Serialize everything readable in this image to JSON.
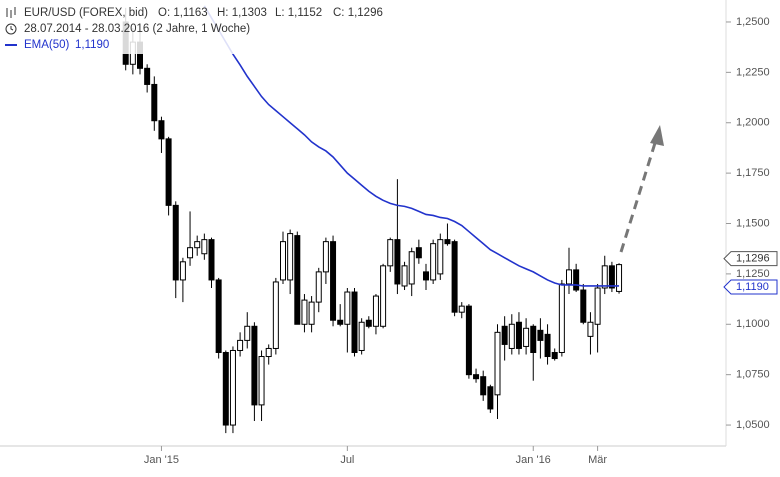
{
  "chart_data": {
    "type": "candlestick",
    "header": {
      "open": "O: 1,1163",
      "high": "H: 1,1303",
      "low": "L: 1,1152",
      "close": "C: 1,1296",
      "period": "28.07.2014 - 28.03.2016 (2 Jahre, 1 Woche)"
    },
    "categories": [
      null,
      null,
      null,
      null,
      null,
      "Jan '15",
      null,
      null,
      null,
      null,
      null,
      null,
      null,
      null,
      null,
      null,
      null,
      null,
      null,
      null,
      null,
      null,
      null,
      null,
      null,
      null,
      null,
      null,
      null,
      null,
      null,
      "Jul",
      null,
      null,
      null,
      null,
      null,
      null,
      null,
      null,
      null,
      null,
      null,
      null,
      null,
      null,
      null,
      null,
      null,
      null,
      null,
      null,
      null,
      null,
      null,
      null,
      null,
      "Jan '16",
      null,
      null,
      null,
      null,
      null,
      null,
      null,
      null,
      "Mär",
      null,
      null,
      null
    ],
    "series": [
      {
        "name": "EUR/USD (FOREX, bid)",
        "last_label": "1,1296",
        "open": [
          1.25,
          1.229,
          1.24,
          1.227,
          1.219,
          1.201,
          1.192,
          1.159,
          1.122,
          1.133,
          1.138,
          1.135,
          1.142,
          1.122,
          1.086,
          1.05,
          1.087,
          1.092,
          1.099,
          1.06,
          1.084,
          1.088,
          1.122,
          1.122,
          1.144,
          1.1,
          1.1,
          1.111,
          1.126,
          1.141,
          1.102,
          1.1,
          1.116,
          1.087,
          1.102,
          1.099,
          1.099,
          1.129,
          1.142,
          1.119,
          1.12,
          1.138,
          1.126,
          1.122,
          1.125,
          1.142,
          1.141,
          1.106,
          1.109,
          1.075,
          1.074,
          1.069,
          1.065,
          1.099,
          1.088,
          1.101,
          1.089,
          1.099,
          1.097,
          1.095,
          1.086,
          1.086,
          1.12,
          1.127,
          1.117,
          1.094,
          1.1,
          1.118,
          1.129,
          1.1163
        ],
        "high": [
          1.257,
          1.247,
          1.245,
          1.229,
          1.223,
          1.203,
          1.193,
          1.161,
          1.133,
          1.156,
          1.144,
          1.145,
          1.143,
          1.123,
          1.087,
          1.089,
          1.096,
          1.106,
          1.101,
          1.087,
          1.09,
          1.123,
          1.146,
          1.147,
          1.146,
          1.115,
          1.114,
          1.128,
          1.143,
          1.144,
          1.11,
          1.118,
          1.118,
          1.103,
          1.104,
          1.115,
          1.13,
          1.143,
          1.172,
          1.131,
          1.138,
          1.142,
          1.13,
          1.142,
          1.145,
          1.15,
          1.142,
          1.111,
          1.11,
          1.078,
          1.077,
          1.07,
          1.1,
          1.104,
          1.105,
          1.106,
          1.103,
          1.1,
          1.103,
          1.1,
          1.088,
          1.122,
          1.138,
          1.13,
          1.12,
          1.106,
          1.12,
          1.134,
          1.131,
          1.1303
        ],
        "low": [
          1.226,
          1.224,
          1.224,
          1.215,
          1.196,
          1.185,
          1.154,
          1.113,
          1.111,
          1.129,
          1.134,
          1.132,
          1.118,
          1.083,
          1.046,
          1.046,
          1.084,
          1.088,
          1.052,
          1.052,
          1.08,
          1.085,
          1.12,
          1.115,
          1.1,
          1.096,
          1.096,
          1.106,
          1.12,
          1.099,
          1.099,
          1.086,
          1.084,
          1.085,
          1.098,
          1.095,
          1.098,
          1.126,
          1.115,
          1.117,
          1.114,
          1.13,
          1.117,
          1.12,
          1.122,
          1.139,
          1.104,
          1.103,
          1.073,
          1.071,
          1.062,
          1.056,
          1.053,
          1.082,
          1.085,
          1.085,
          1.085,
          1.072,
          1.083,
          1.08,
          1.082,
          1.084,
          1.115,
          1.116,
          1.1,
          1.085,
          1.086,
          1.115,
          1.116,
          1.1152
        ],
        "close": [
          1.229,
          1.24,
          1.227,
          1.219,
          1.201,
          1.192,
          1.159,
          1.122,
          1.131,
          1.138,
          1.141,
          1.142,
          1.122,
          1.086,
          1.05,
          1.087,
          1.092,
          1.099,
          1.06,
          1.084,
          1.088,
          1.121,
          1.141,
          1.145,
          1.1,
          1.112,
          1.111,
          1.126,
          1.141,
          1.102,
          1.1,
          1.116,
          1.086,
          1.101,
          1.099,
          1.114,
          1.129,
          1.142,
          1.12,
          1.129,
          1.136,
          1.133,
          1.122,
          1.14,
          1.142,
          1.14,
          1.106,
          1.109,
          1.075,
          1.073,
          1.065,
          1.058,
          1.096,
          1.09,
          1.1,
          1.088,
          1.098,
          1.086,
          1.092,
          1.084,
          1.083,
          1.12,
          1.127,
          1.117,
          1.101,
          1.101,
          1.118,
          1.129,
          1.118,
          1.1296
        ]
      },
      {
        "name": "EMA(50)",
        "color": "#2233cc",
        "last_label": "1,1190",
        "values": [
          null,
          null,
          null,
          null,
          null,
          null,
          null,
          null,
          null,
          null,
          null,
          1.258,
          1.252,
          1.246,
          1.24,
          1.234,
          1.2287,
          1.223,
          1.218,
          1.213,
          1.209,
          1.206,
          1.203,
          1.2,
          1.197,
          1.194,
          1.1905,
          1.188,
          1.186,
          1.183,
          1.179,
          1.175,
          1.172,
          1.169,
          1.166,
          1.1635,
          1.1615,
          1.16,
          1.159,
          1.1585,
          1.1575,
          1.156,
          1.1545,
          1.154,
          1.153,
          1.1525,
          1.151,
          1.149,
          1.146,
          1.143,
          1.14,
          1.137,
          1.135,
          1.133,
          1.131,
          1.129,
          1.1275,
          1.126,
          1.124,
          1.122,
          1.1205,
          1.1195,
          1.1195,
          1.1195,
          1.119,
          1.119,
          1.119,
          1.119,
          1.119,
          1.119
        ]
      }
    ],
    "ylim": [
      1.0401,
      1.2609
    ],
    "yticks": [
      {
        "value": 1.05,
        "label": "1,0500"
      },
      {
        "value": 1.075,
        "label": "1,0750"
      },
      {
        "value": 1.1,
        "label": "1,1000"
      },
      {
        "value": 1.125,
        "label": "1,1250"
      },
      {
        "value": 1.15,
        "label": "1,1500"
      },
      {
        "value": 1.175,
        "label": "1,1750"
      },
      {
        "value": 1.2,
        "label": "1,2000"
      },
      {
        "value": 1.225,
        "label": "1,2250"
      },
      {
        "value": 1.25,
        "label": "1,2500"
      }
    ]
  }
}
